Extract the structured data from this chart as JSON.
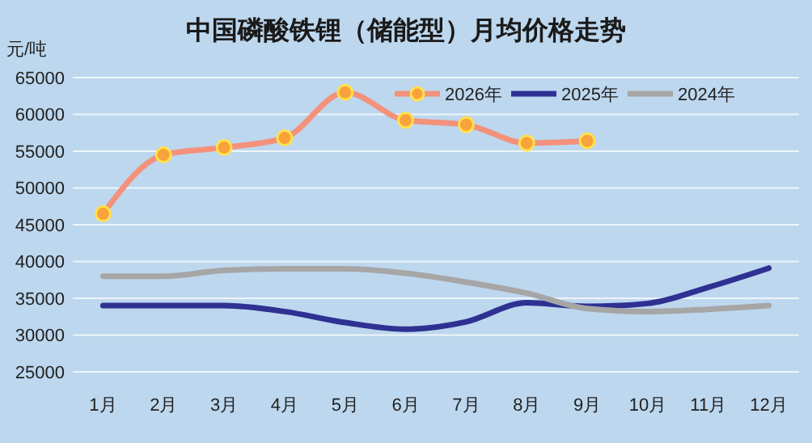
{
  "chart_data": {
    "type": "line",
    "title": "中国磷酸铁锂（储能型）月均价格走势",
    "ylabel": "元/吨",
    "categories": [
      "1月",
      "2月",
      "3月",
      "4月",
      "5月",
      "6月",
      "7月",
      "8月",
      "9月",
      "10月",
      "11月",
      "12月"
    ],
    "series": [
      {
        "name": "2026年",
        "color": "#f4917b",
        "marker": "circle",
        "values": [
          46500,
          54500,
          55500,
          56800,
          63000,
          59200,
          58600,
          56100,
          56400,
          null,
          null,
          null
        ]
      },
      {
        "name": "2025年",
        "color": "#2e3192",
        "values": [
          34000,
          34000,
          34000,
          33200,
          31700,
          30800,
          31800,
          34400,
          33900,
          34300,
          36500,
          39100
        ]
      },
      {
        "name": "2024年",
        "color": "#a6a6a6",
        "values": [
          38000,
          38000,
          38800,
          39000,
          39000,
          38400,
          37200,
          35700,
          33600,
          33200,
          33500,
          34000
        ]
      }
    ],
    "ylim": [
      25000,
      65000
    ],
    "yticks": [
      25000,
      30000,
      35000,
      40000,
      45000,
      50000,
      55000,
      60000,
      65000
    ],
    "grid": "y",
    "legend": "top right"
  }
}
